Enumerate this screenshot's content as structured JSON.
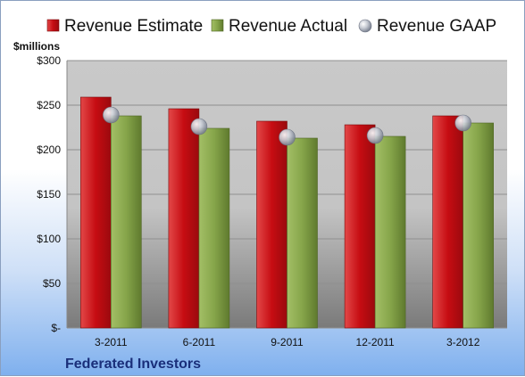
{
  "chart_data": {
    "type": "bar",
    "categories": [
      "3-2011",
      "6-2011",
      "9-2011",
      "12-2011",
      "3-2012"
    ],
    "series": [
      {
        "name": "Revenue Estimate",
        "kind": "bar",
        "values": [
          259,
          246,
          232,
          228,
          238
        ],
        "color": "#d9141a"
      },
      {
        "name": "Revenue Actual",
        "kind": "bar",
        "values": [
          238,
          224,
          213,
          215,
          230
        ],
        "color": "#8aa84a"
      },
      {
        "name": "Revenue GAAP",
        "kind": "marker",
        "values": [
          239,
          226,
          214,
          216,
          230
        ],
        "color": "#c8ccd4"
      }
    ],
    "unit_label": "$millions",
    "ylim": [
      0,
      300
    ],
    "y_ticks": [
      0,
      50,
      100,
      150,
      200,
      250,
      300
    ],
    "y_tick_labels": [
      "$-",
      "$50",
      "$100",
      "$150",
      "$200",
      "$250",
      "$300"
    ],
    "grid": true,
    "legend_position": "top",
    "company": "Federated Investors"
  }
}
